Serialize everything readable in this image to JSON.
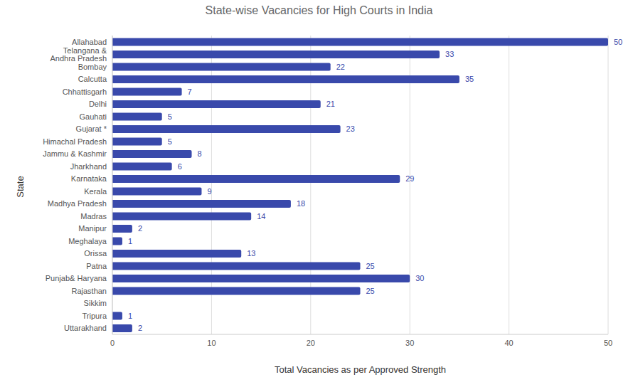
{
  "chart_data": {
    "type": "bar",
    "title": "State-wise Vacancies for High Courts in India",
    "x_label": "Total Vacancies as per Approved Strength",
    "y_label": "State",
    "orientation": "horizontal",
    "categories": [
      "Allahabad",
      "Telangana & Andhra Pradesh",
      "Bombay",
      "Calcutta",
      "Chhattisgarh",
      "Delhi",
      "Gauhati",
      "Gujarat *",
      "Himachal Pradesh",
      "Jammu & Kashmir",
      "Jharkhand",
      "Karnataka",
      "Kerala",
      "Madhya Pradesh",
      "Madras",
      "Manipur",
      "Meghalaya",
      "Orissa",
      "Patna",
      "Punjab& Haryana",
      "Rajasthan",
      "Sikkim",
      "Tripura",
      "Uttarakhand"
    ],
    "values": [
      50,
      33,
      22,
      35,
      7,
      21,
      5,
      23,
      5,
      8,
      6,
      29,
      9,
      18,
      14,
      2,
      1,
      13,
      25,
      30,
      25,
      0,
      1,
      2
    ],
    "color": "#3949ab",
    "xlim": [
      0,
      50
    ],
    "xticks": [
      0,
      10,
      20,
      30,
      40,
      50
    ],
    "grid": true,
    "data_labels": true
  }
}
